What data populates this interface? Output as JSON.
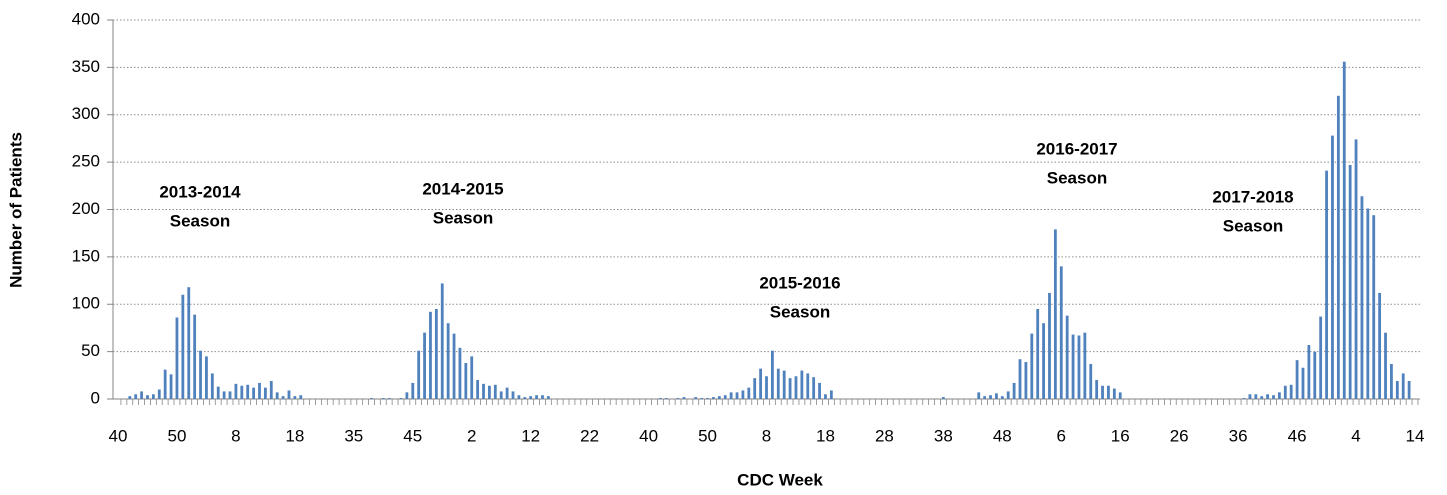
{
  "chart_data": {
    "type": "bar",
    "x_label": "CDC Week",
    "y_label": "Number of Patients",
    "color": "#4f81bd",
    "grid": true,
    "ylim": [
      0,
      400
    ],
    "yticks": [
      0,
      50,
      100,
      150,
      200,
      250,
      300,
      350,
      400
    ],
    "categories": [
      "40",
      null,
      null,
      null,
      null,
      null,
      null,
      null,
      null,
      null,
      "50",
      null,
      null,
      null,
      null,
      null,
      null,
      null,
      null,
      null,
      "8",
      null,
      null,
      null,
      null,
      null,
      null,
      null,
      null,
      null,
      "18",
      null,
      null,
      null,
      null,
      null,
      null,
      null,
      null,
      null,
      "35",
      null,
      null,
      null,
      null,
      null,
      null,
      null,
      null,
      null,
      "45",
      null,
      null,
      null,
      null,
      null,
      null,
      null,
      null,
      null,
      "2",
      null,
      null,
      null,
      null,
      null,
      null,
      null,
      null,
      null,
      "12",
      null,
      null,
      null,
      null,
      null,
      null,
      null,
      null,
      null,
      "22",
      null,
      null,
      null,
      null,
      null,
      null,
      null,
      null,
      null,
      "40",
      null,
      null,
      null,
      null,
      null,
      null,
      null,
      null,
      null,
      "50",
      null,
      null,
      null,
      null,
      null,
      null,
      null,
      null,
      null,
      "8",
      null,
      null,
      null,
      null,
      null,
      null,
      null,
      null,
      null,
      "18",
      null,
      null,
      null,
      null,
      null,
      null,
      null,
      null,
      null,
      "28",
      null,
      null,
      null,
      null,
      null,
      null,
      null,
      null,
      null,
      "38",
      null,
      null,
      null,
      null,
      null,
      null,
      null,
      null,
      null,
      "48",
      null,
      null,
      null,
      null,
      null,
      null,
      null,
      null,
      null,
      "6",
      null,
      null,
      null,
      null,
      null,
      null,
      null,
      null,
      null,
      "16",
      null,
      null,
      null,
      null,
      null,
      null,
      null,
      null,
      null,
      "26",
      null,
      null,
      null,
      null,
      null,
      null,
      null,
      null,
      null,
      "36",
      null,
      null,
      null,
      null,
      null,
      null,
      null,
      null,
      null,
      "46",
      null,
      null,
      null,
      null,
      null,
      null,
      null,
      null,
      null,
      "4",
      null,
      null,
      null,
      null,
      null,
      null,
      null,
      null,
      null,
      "14"
    ],
    "values": [
      0,
      0,
      3,
      5,
      8,
      4,
      5,
      10,
      31,
      26,
      86,
      110,
      118,
      89,
      51,
      45,
      27,
      13,
      8,
      8,
      16,
      14,
      15,
      12,
      17,
      12,
      19,
      7,
      3,
      9,
      3,
      4,
      0,
      0,
      0,
      0,
      0,
      0,
      0,
      0,
      0,
      0,
      0,
      1,
      0,
      1,
      1,
      0,
      1,
      7,
      17,
      51,
      70,
      92,
      95,
      122,
      80,
      69,
      54,
      38,
      45,
      20,
      16,
      14,
      15,
      8,
      12,
      8,
      4,
      2,
      3,
      4,
      4,
      3,
      0,
      0,
      0,
      0,
      0,
      0,
      0,
      0,
      0,
      0,
      0,
      0,
      0,
      0,
      0,
      0,
      0,
      0,
      1,
      1,
      0,
      1,
      2,
      0,
      2,
      1,
      1,
      2,
      3,
      4,
      7,
      7,
      9,
      12,
      22,
      32,
      24,
      51,
      32,
      30,
      22,
      24,
      30,
      27,
      23,
      17,
      5,
      9,
      0,
      0,
      0,
      0,
      0,
      0,
      0,
      0,
      0,
      0,
      0,
      0,
      0,
      0,
      0,
      0,
      0,
      0,
      2,
      0,
      0,
      0,
      0,
      0,
      7,
      3,
      4,
      6,
      3,
      8,
      17,
      42,
      39,
      69,
      95,
      80,
      112,
      179,
      140,
      88,
      68,
      67,
      70,
      37,
      20,
      14,
      14,
      11,
      7,
      0,
      0,
      0,
      0,
      0,
      0,
      0,
      0,
      0,
      0,
      0,
      0,
      0,
      0,
      0,
      0,
      0,
      0,
      0,
      0,
      1,
      5,
      5,
      3,
      5,
      4,
      7,
      14,
      15,
      41,
      33,
      57,
      50,
      87,
      241,
      278,
      320,
      356,
      247,
      274,
      214,
      201,
      194,
      112,
      70,
      37,
      19,
      27,
      19,
      0
    ],
    "annotations": [
      [
        "2013-2014",
        "Season"
      ],
      [
        "2014-2015",
        "Season"
      ],
      [
        "2015-2016",
        "Season"
      ],
      [
        "2016-2017",
        "Season"
      ],
      [
        "2017-2018",
        "Season"
      ]
    ]
  }
}
